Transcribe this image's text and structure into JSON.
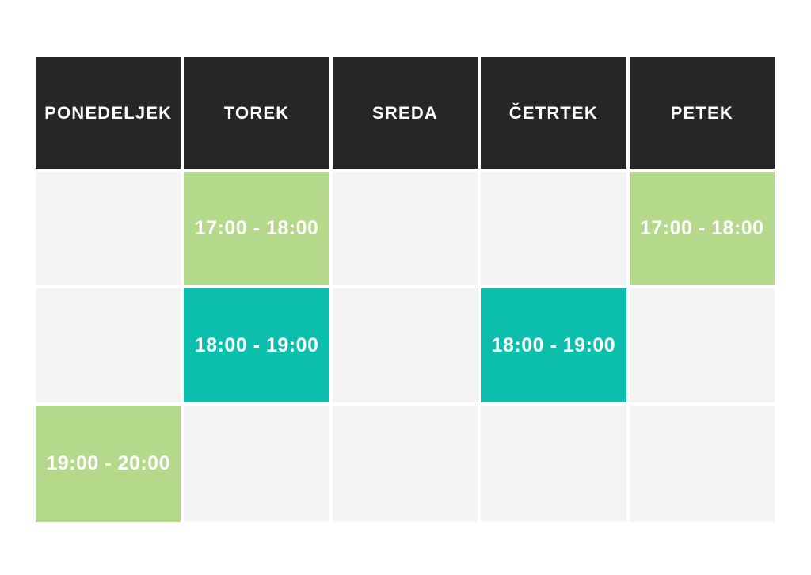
{
  "colors": {
    "page_bg": "#ffffff",
    "header_bg": "#262626",
    "header_text": "#ffffff",
    "empty_cell_bg": "#f4f4f4",
    "green_cell_bg": "#b4d98a",
    "teal_cell_bg": "#0cbfad",
    "cell_text": "#ffffff"
  },
  "table": {
    "headers": [
      {
        "key": "ponedeljek",
        "label": "PONEDELJEK"
      },
      {
        "key": "torek",
        "label": "TOREK"
      },
      {
        "key": "sreda",
        "label": "SREDA"
      },
      {
        "key": "cetrtek",
        "label": "ČETRTEK"
      },
      {
        "key": "petek",
        "label": "PETEK"
      }
    ],
    "rows": [
      [
        {
          "variant": "empty",
          "label": ""
        },
        {
          "variant": "green",
          "label": "17:00 - 18:00"
        },
        {
          "variant": "empty",
          "label": ""
        },
        {
          "variant": "empty",
          "label": ""
        },
        {
          "variant": "green",
          "label": "17:00 - 18:00"
        }
      ],
      [
        {
          "variant": "empty",
          "label": ""
        },
        {
          "variant": "teal",
          "label": "18:00 - 19:00"
        },
        {
          "variant": "empty",
          "label": ""
        },
        {
          "variant": "teal",
          "label": "18:00 - 19:00"
        },
        {
          "variant": "empty",
          "label": ""
        }
      ],
      [
        {
          "variant": "green",
          "label": "19:00 - 20:00"
        },
        {
          "variant": "empty",
          "label": ""
        },
        {
          "variant": "empty",
          "label": ""
        },
        {
          "variant": "empty",
          "label": ""
        },
        {
          "variant": "empty",
          "label": ""
        }
      ]
    ]
  },
  "chart_data": {
    "type": "table",
    "title": "",
    "columns": [
      "PONEDELJEK",
      "TOREK",
      "SREDA",
      "ČETRTEK",
      "PETEK"
    ],
    "rows": [
      [
        "",
        "17:00 - 18:00",
        "",
        "",
        "17:00 - 18:00"
      ],
      [
        "",
        "18:00 - 19:00",
        "",
        "18:00 - 19:00",
        ""
      ],
      [
        "19:00 - 20:00",
        "",
        "",
        "",
        ""
      ]
    ],
    "cell_colors": [
      [
        "#f4f4f4",
        "#b4d98a",
        "#f4f4f4",
        "#f4f4f4",
        "#b4d98a"
      ],
      [
        "#f4f4f4",
        "#0cbfad",
        "#f4f4f4",
        "#0cbfad",
        "#f4f4f4"
      ],
      [
        "#b4d98a",
        "#f4f4f4",
        "#f4f4f4",
        "#f4f4f4",
        "#f4f4f4"
      ]
    ],
    "header_color": "#262626",
    "grid": false,
    "legend": "none"
  }
}
